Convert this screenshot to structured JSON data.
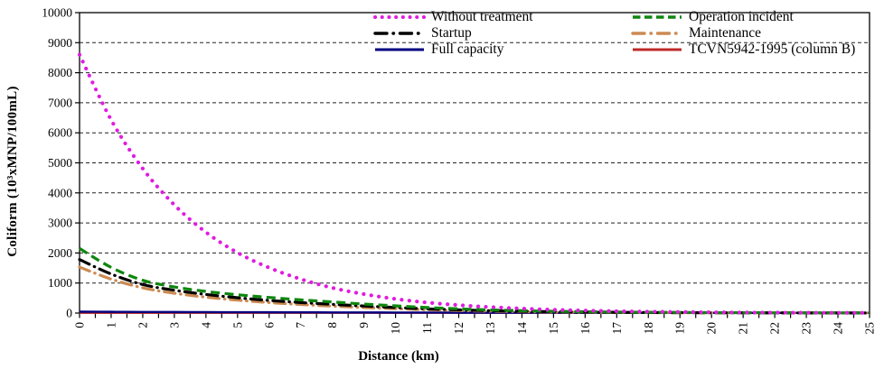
{
  "chart_data": {
    "type": "line",
    "title": "",
    "xlabel": "Distance (km)",
    "ylabel": "Coliform (10³xMNP/100mL)",
    "x": [
      0,
      1,
      2,
      3,
      4,
      5,
      6,
      7,
      8,
      9,
      10,
      11,
      12,
      13,
      14,
      15,
      16,
      17,
      18,
      19,
      20,
      21,
      22,
      23,
      24,
      25
    ],
    "xlim": [
      0,
      25
    ],
    "ylim": [
      0,
      10000
    ],
    "y_ticks": [
      0,
      1000,
      2000,
      3000,
      4000,
      5000,
      6000,
      7000,
      8000,
      9000,
      10000
    ],
    "x_tick_labels": [
      "0",
      "1",
      "2",
      "3",
      "4",
      "5",
      "6",
      "7",
      "8",
      "9",
      "10",
      "11",
      "12",
      "13",
      "14",
      "15",
      "16",
      "17",
      "18",
      "19",
      "20",
      "21",
      "22",
      "23",
      "24",
      "25"
    ],
    "grid": "horizontal-dashed-every-1000",
    "legend_position": "top-inside-two-columns",
    "series": [
      {
        "name": "Without treatment",
        "color": "#E01CE0",
        "style": "dotted",
        "values": [
          8600,
          6430,
          4810,
          3600,
          2690,
          2010,
          1510,
          1130,
          840,
          630,
          470,
          350,
          265,
          200,
          150,
          110,
          83,
          62,
          46,
          35,
          26,
          19,
          15,
          11,
          8,
          6
        ]
      },
      {
        "name": "Operation incident",
        "color": "#0E860E",
        "style": "dashed",
        "values": [
          2150,
          1520,
          1090,
          870,
          720,
          610,
          520,
          440,
          370,
          300,
          240,
          185,
          140,
          105,
          80,
          60,
          45,
          34,
          26,
          20,
          15,
          12,
          9,
          7,
          6,
          5
        ]
      },
      {
        "name": "Startup",
        "color": "#000000",
        "style": "dashdot",
        "values": [
          1780,
          1300,
          950,
          760,
          620,
          510,
          420,
          350,
          290,
          235,
          185,
          140,
          105,
          80,
          60,
          45,
          34,
          26,
          19,
          15,
          11,
          9,
          7,
          5,
          4,
          3
        ]
      },
      {
        "name": "Maintenance",
        "color": "#CC8A52",
        "style": "dashdot",
        "values": [
          1530,
          1130,
          840,
          660,
          530,
          430,
          350,
          285,
          230,
          185,
          145,
          110,
          82,
          62,
          47,
          35,
          26,
          20,
          15,
          11,
          9,
          7,
          5,
          4,
          3,
          2
        ]
      },
      {
        "name": "Full capacity",
        "color": "#000080",
        "style": "solid",
        "values": [
          45,
          41,
          37,
          34,
          31,
          28,
          26,
          24,
          22,
          20,
          18,
          17,
          15,
          14,
          13,
          12,
          11,
          10,
          9,
          9,
          8,
          8,
          7,
          7,
          6,
          6
        ]
      },
      {
        "name": "TCVN5942-1995 (column B)",
        "color": "#C02828",
        "style": "solid",
        "values": [
          10,
          10,
          10,
          10,
          10,
          10,
          10,
          10,
          10,
          10,
          10,
          10,
          10,
          10,
          10,
          10,
          10,
          10,
          10,
          10,
          10,
          10,
          10,
          10,
          10,
          10
        ]
      }
    ]
  }
}
